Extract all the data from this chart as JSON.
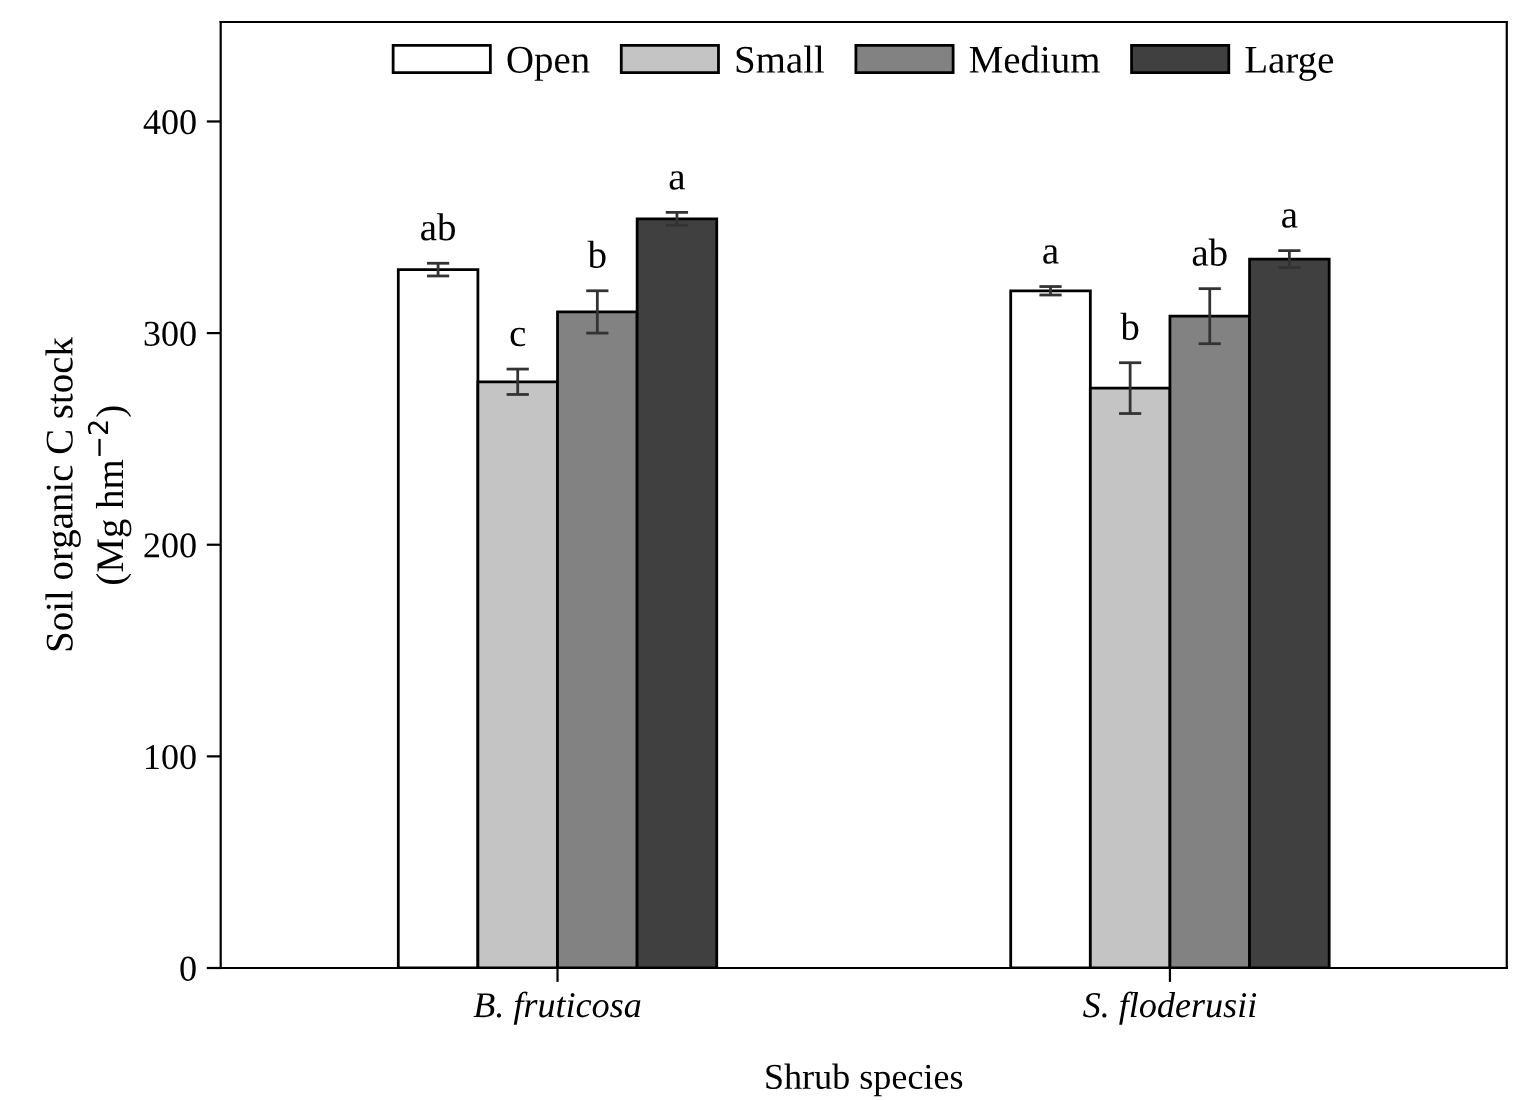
{
  "chart_data": {
    "type": "bar",
    "xlabel": "Shrub species",
    "ylabel": "Soil organic C stock\n(Mg hm$^{−2}$)",
    "categories": [
      "B. fruticosa",
      "S. floderusii"
    ],
    "series": [
      {
        "name": "Open",
        "color": "#ffffff",
        "values": [
          330,
          320
        ],
        "errors": [
          3,
          2
        ],
        "value_labels": [
          "ab",
          "a"
        ]
      },
      {
        "name": "Small",
        "color": "#c4c4c4",
        "values": [
          277,
          274
        ],
        "errors": [
          6,
          12
        ],
        "value_labels": [
          "c",
          "b"
        ]
      },
      {
        "name": "Medium",
        "color": "#828282",
        "values": [
          310,
          308
        ],
        "errors": [
          10,
          13
        ],
        "value_labels": [
          "b",
          "ab"
        ]
      },
      {
        "name": "Large",
        "color": "#404040",
        "values": [
          354,
          335
        ],
        "errors": [
          3,
          4
        ],
        "value_labels": [
          "a",
          "a"
        ]
      }
    ],
    "ylim": [
      0,
      447
    ],
    "yticks": [
      0,
      100,
      200,
      300,
      400
    ],
    "grid": false,
    "legend": "top"
  }
}
